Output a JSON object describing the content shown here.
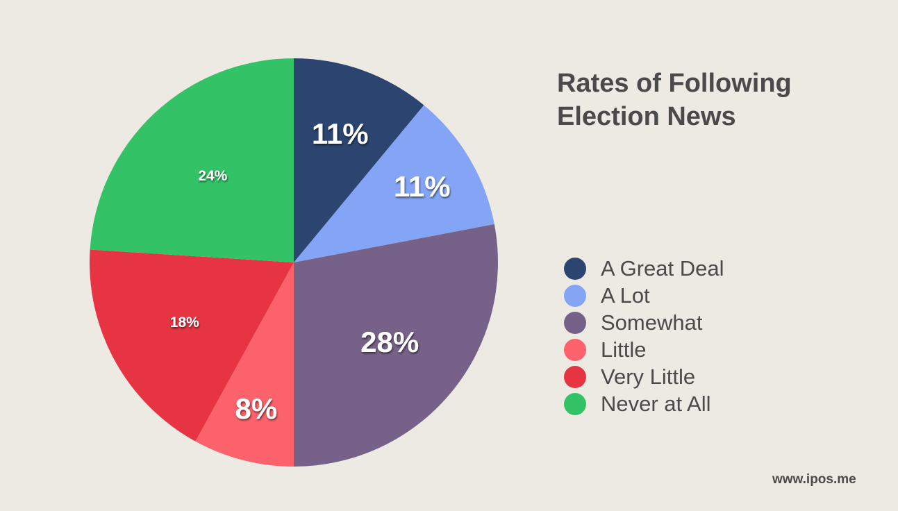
{
  "chart_data": {
    "type": "pie",
    "title_lines": [
      "Rates of Following",
      "Election News"
    ],
    "categories": [
      "A Great Deal",
      "A Lot",
      "Somewhat",
      "Little",
      "Very Little",
      "Never at All"
    ],
    "values": [
      11,
      11,
      28,
      8,
      18,
      24
    ],
    "labels": [
      "11%",
      "11%",
      "28%",
      "8%",
      "18%",
      "24%"
    ],
    "colors": [
      "#2b4570",
      "#84a5f5",
      "#766288",
      "#fb626b",
      "#e63442",
      "#33c366"
    ],
    "start_angle": "12 o'clock",
    "direction": "clockwise",
    "legend_position": "right"
  },
  "watermark": "www.ipos.me"
}
